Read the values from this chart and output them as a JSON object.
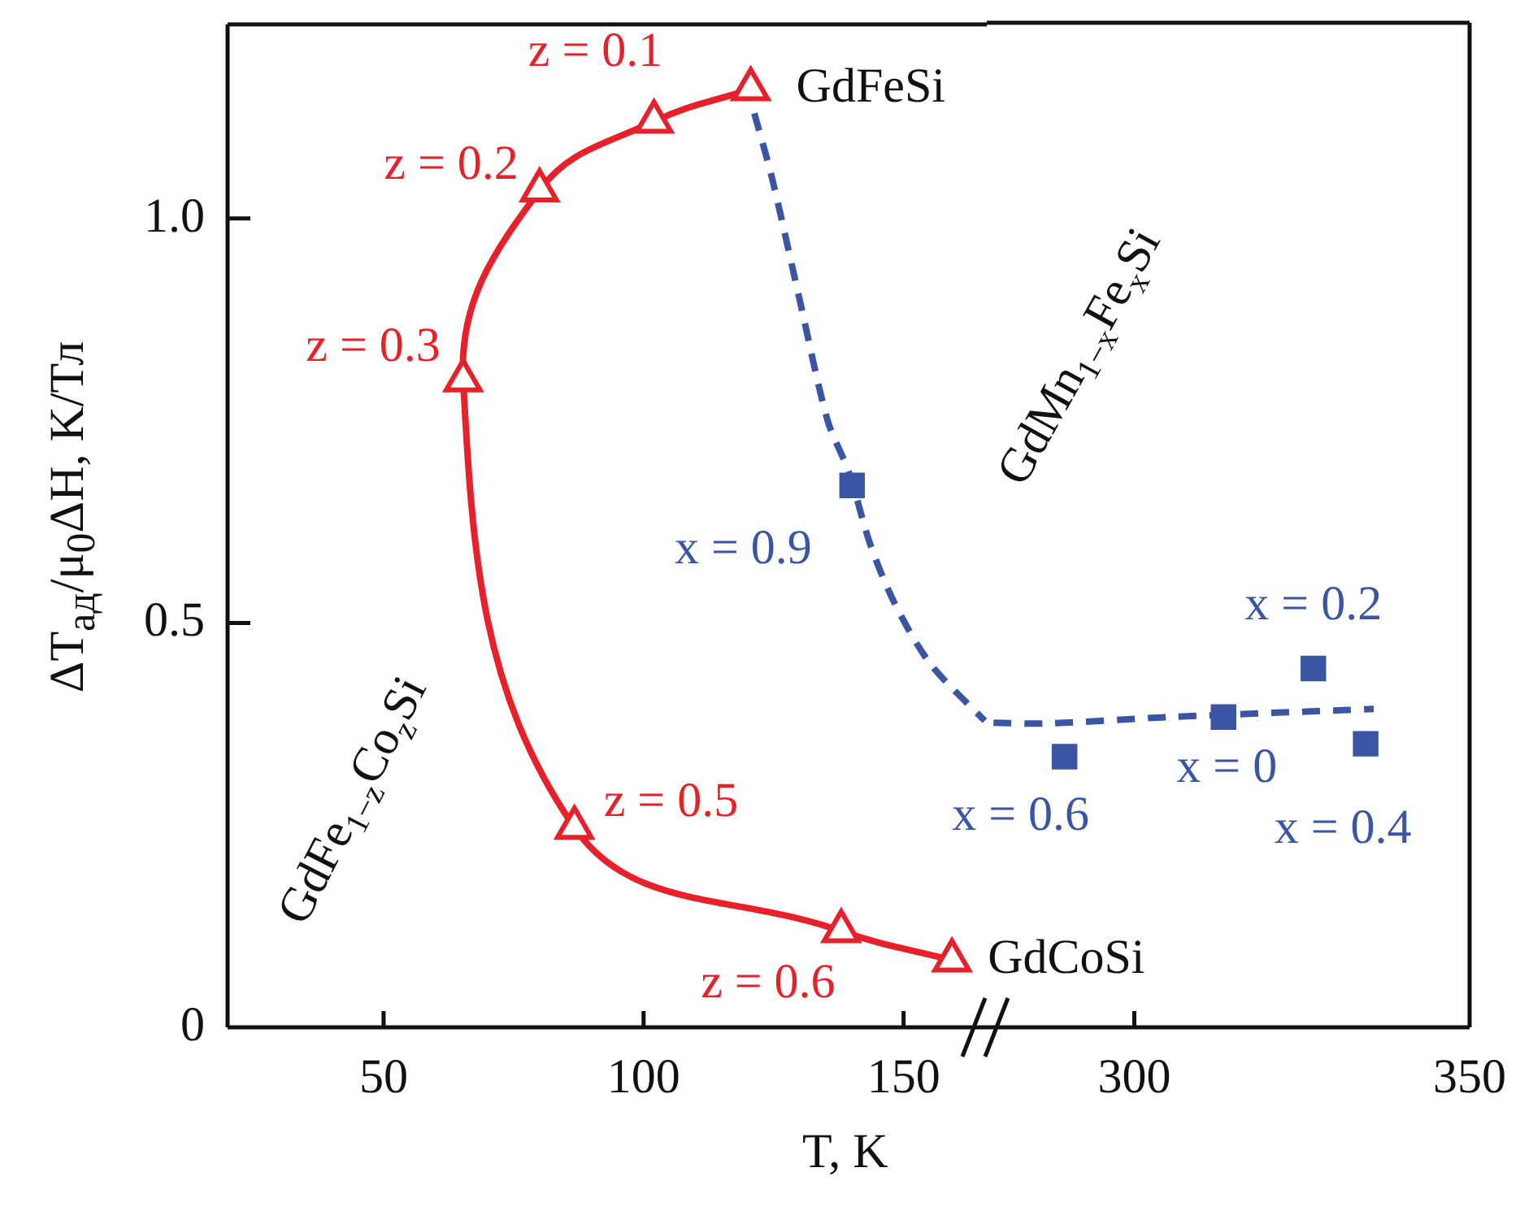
{
  "chart_data": [
    {
      "type": "line",
      "ylabel": "ΔT$_{ад}$/μ$_{0}$ΔH, K/Тл",
      "xlabel": "T, K",
      "xlim": [
        20,
        166
      ],
      "xticks": [
        50,
        100,
        150
      ],
      "ylim": [
        0,
        1.24
      ],
      "yticks": [
        0,
        0.5,
        {
          "value": 1,
          "label": "1.0"
        }
      ],
      "grid": false,
      "series": [
        {
          "type": "line",
          "name": "GdFe$_{1−z}$Co$_{z}$Si",
          "color": "#e8202a",
          "marker": "triangle",
          "line_style": "solid",
          "x": [
            120.6,
            102,
            80,
            65.3,
            86.7,
            138,
            159.3
          ],
          "values": [
            1.16,
            1.12,
            1.035,
            0.8,
            0.247,
            0.119,
            0.083
          ]
        },
        {
          "type": "line",
          "color": "#3a55a4",
          "marker": "none",
          "line_style": "dashed",
          "x": [
            121.3,
            124.7,
            130,
            135.4,
            139.5,
            143.6,
            148.3,
            155.2,
            165.6
          ],
          "values": [
            1.13,
            1.05,
            0.9,
            0.75,
            0.686,
            0.597,
            0.524,
            0.449,
            0.379
          ]
        },
        {
          "type": "scatter",
          "color": "#3a55a4",
          "marker": "square",
          "x": [
            140.1
          ],
          "values": [
            0.67
          ]
        }
      ],
      "annotations": [
        {
          "text": "GdFeSi",
          "x": 120.6,
          "y": 1.16
        },
        {
          "text": "z = 0.1",
          "x": 102,
          "y": 1.12
        },
        {
          "text": "z = 0.2",
          "x": 80,
          "y": 1.035
        },
        {
          "text": "z = 0.3",
          "x": 65.3,
          "y": 0.8
        },
        {
          "text": "z = 0.5",
          "x": 86.7,
          "y": 0.247
        },
        {
          "text": "z = 0.6",
          "x": 138,
          "y": 0.119
        },
        {
          "text": "GdCoSi",
          "x": 159.3,
          "y": 0.083
        },
        {
          "text": "x = 0.9",
          "x": 140.1,
          "y": 0.67
        }
      ]
    },
    {
      "type": "line",
      "xlim": [
        278,
        350
      ],
      "xticks": [
        300,
        350
      ],
      "ylim": [
        0,
        1.24
      ],
      "tick_labels": "x",
      "grid": false,
      "series": [
        {
          "type": "line",
          "name": "GdMn$_{1−x}$Fe$_{x}$Si",
          "color": "#3a55a4",
          "marker": "none",
          "line_style": "dashed",
          "x": [
            279,
            286.7,
            305.3,
            335.7
          ],
          "values": [
            0.376,
            0.375,
            0.383,
            0.393
          ]
        },
        {
          "type": "scatter",
          "color": "#3a55a4",
          "marker": "square",
          "x": [
            289.6,
            313.3,
            326.7,
            334.5
          ],
          "values": [
            0.334,
            0.383,
            0.443,
            0.35
          ]
        }
      ],
      "annotations": [
        {
          "text": "x = 0.6",
          "x": 289.6,
          "y": 0.334
        },
        {
          "text": "x = 0",
          "x": 313.3,
          "y": 0.383
        },
        {
          "text": "x = 0.2",
          "x": 326.7,
          "y": 0.443
        },
        {
          "text": "x = 0.4",
          "x": 334.5,
          "y": 0.35
        }
      ]
    }
  ]
}
